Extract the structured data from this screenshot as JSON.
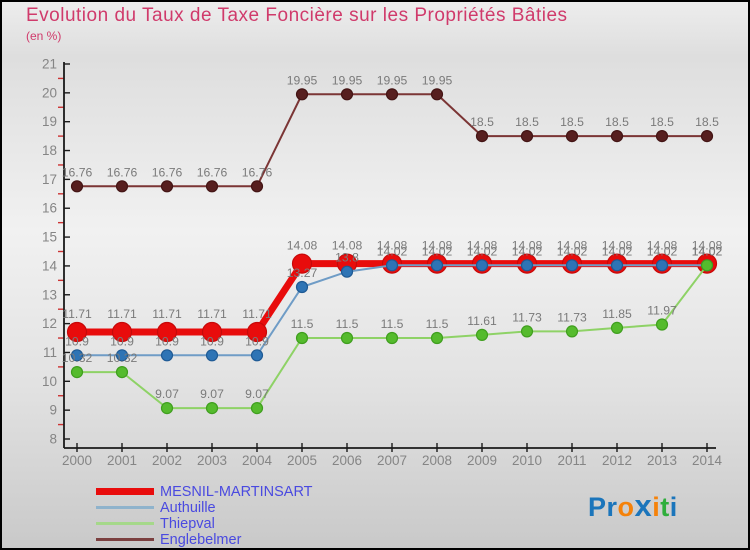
{
  "header": {
    "title": "Evolution du Taux de Taxe Foncière sur les Propriétés Bâties",
    "subtitle": "(en %)",
    "title_color": "#d03a6b"
  },
  "chart_data": {
    "type": "line",
    "title": "Evolution du Taux de Taxe Foncière sur les Propriétés Bâties",
    "unit_label": "(en %)",
    "x": [
      2000,
      2001,
      2002,
      2003,
      2004,
      2005,
      2006,
      2007,
      2008,
      2009,
      2010,
      2011,
      2012,
      2013,
      2014
    ],
    "ylim": [
      8,
      21
    ],
    "y_major_step": 1,
    "y_minor_step": 0.5,
    "grid": "off",
    "legend_position": "bottom-left",
    "axis": {
      "line_color": "#1a1a1a",
      "major_tick_color": "#1a1a1a",
      "minor_tick_color": "#cc3333",
      "label_color": "#858585",
      "data_label_color": "#7a7a7a"
    },
    "series": [
      {
        "name": "MESNIL-MARTINSART",
        "line_color": "#e80c0c",
        "marker_color": "#e80c0c",
        "marker_stroke": "#c70909",
        "line_width": 7,
        "marker_radius": 9.5,
        "values": [
          11.71,
          11.71,
          11.71,
          11.71,
          11.71,
          14.08,
          14.08,
          14.08,
          14.08,
          14.08,
          14.08,
          14.08,
          14.08,
          14.08,
          14.08
        ]
      },
      {
        "name": "Authuille",
        "line_color": "#6f9cc6",
        "marker_color": "#2e74b5",
        "marker_stroke": "#1f5a94",
        "line_width": 2,
        "marker_radius": 5.5,
        "values": [
          10.9,
          10.9,
          10.9,
          10.9,
          10.9,
          13.27,
          13.8,
          14.02,
          14.02,
          14.02,
          14.02,
          14.02,
          14.02,
          14.02,
          14.02
        ]
      },
      {
        "name": "Thiepval",
        "line_color": "#8ed266",
        "marker_color": "#55bb2d",
        "marker_stroke": "#3f9e1e",
        "line_width": 2,
        "marker_radius": 5.5,
        "values": [
          10.32,
          10.32,
          9.07,
          9.07,
          9.07,
          11.5,
          11.5,
          11.5,
          11.5,
          11.61,
          11.73,
          11.73,
          11.85,
          11.97,
          14.02
        ]
      },
      {
        "name": "Englebelmer",
        "line_color": "#7b3535",
        "marker_color": "#571f1f",
        "marker_stroke": "#431414",
        "line_width": 2,
        "marker_radius": 5.5,
        "values": [
          16.76,
          16.76,
          16.76,
          16.76,
          16.76,
          19.95,
          19.95,
          19.95,
          19.95,
          18.5,
          18.5,
          18.5,
          18.5,
          18.5,
          18.5
        ]
      }
    ]
  },
  "legend": {
    "text_color": "#4a4ae0",
    "items": [
      {
        "label": "MESNIL-MARTINSART",
        "swatch_color": "#e80c0c",
        "swatch_height": 7
      },
      {
        "label": "Authuille",
        "swatch_color": "#8fb3cc",
        "swatch_height": 3
      },
      {
        "label": "Thiepval",
        "swatch_color": "#a5d88a",
        "swatch_height": 3
      },
      {
        "label": "Englebelmer",
        "swatch_color": "#7b4040",
        "swatch_height": 3
      }
    ]
  },
  "logo": {
    "name": "Proxiti",
    "letters": [
      {
        "ch": "P",
        "color": "#1b75bb"
      },
      {
        "ch": "r",
        "color": "#1b75bb"
      },
      {
        "ch": "o",
        "color": "#f5820a"
      },
      {
        "ch": "x",
        "color": "#1b75bb",
        "big": true
      },
      {
        "ch": "i",
        "color": "#f5820a"
      },
      {
        "ch": "t",
        "color": "#2fae3c"
      },
      {
        "ch": "i",
        "color": "#1b75bb"
      }
    ]
  }
}
